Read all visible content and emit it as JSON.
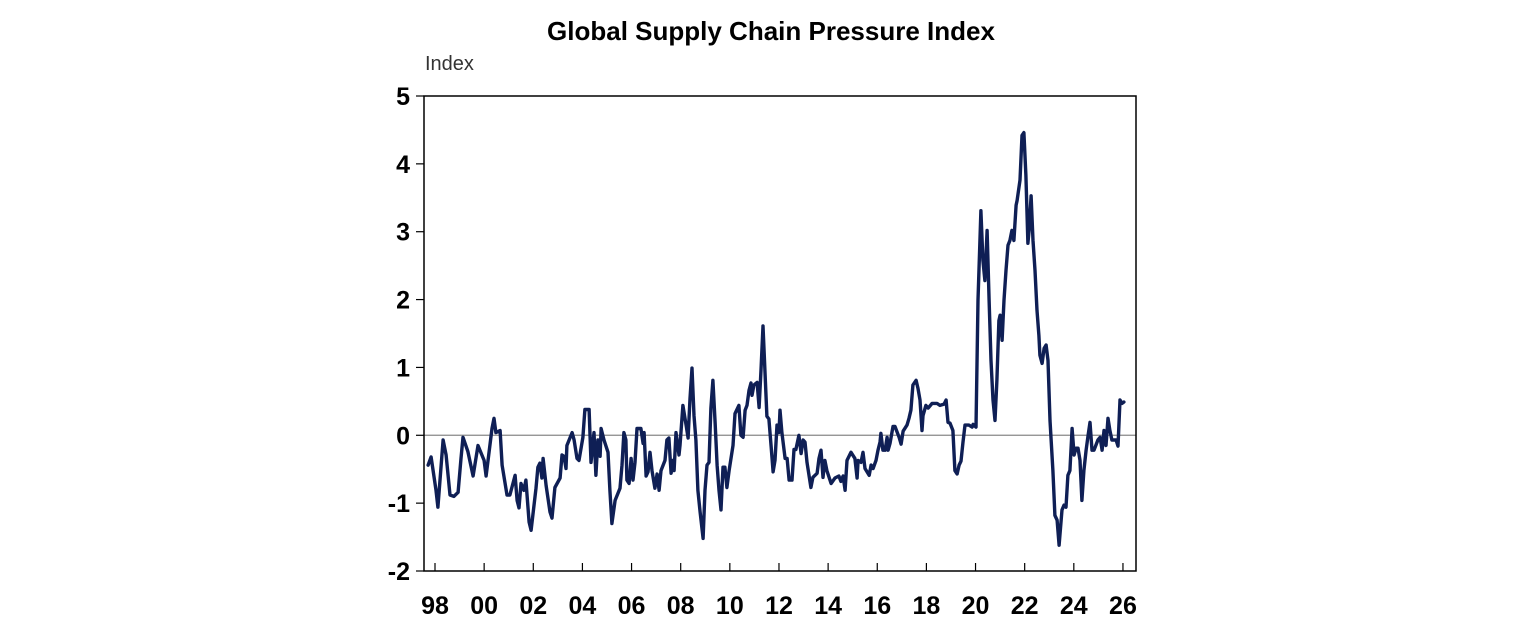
{
  "chart_data": {
    "type": "line",
    "title": "Global Supply Chain Pressure Index",
    "ylabel": "Index",
    "xlabel": "",
    "ylim": [
      -2,
      5
    ],
    "xlim": [
      1997.6,
      2026.5
    ],
    "yticks": [
      5,
      4,
      3,
      2,
      1,
      0,
      -1,
      -2
    ],
    "xticks": [
      {
        "year": 1998,
        "label": "98"
      },
      {
        "year": 2000,
        "label": "00"
      },
      {
        "year": 2002,
        "label": "02"
      },
      {
        "year": 2004,
        "label": "04"
      },
      {
        "year": 2006,
        "label": "06"
      },
      {
        "year": 2008,
        "label": "08"
      },
      {
        "year": 2010,
        "label": "10"
      },
      {
        "year": 2012,
        "label": "12"
      },
      {
        "year": 2014,
        "label": "14"
      },
      {
        "year": 2016,
        "label": "16"
      },
      {
        "year": 2018,
        "label": "18"
      },
      {
        "year": 2020,
        "label": "20"
      },
      {
        "year": 2022,
        "label": "22"
      },
      {
        "year": 2024,
        "label": "24"
      },
      {
        "year": 2026,
        "label": "26"
      }
    ],
    "zero_line": true,
    "grid": false,
    "line_color": "#0f1f55",
    "points": [
      [
        1997.72,
        -0.44
      ],
      [
        1997.84,
        -0.32
      ],
      [
        1998.04,
        -0.81
      ],
      [
        1998.12,
        -1.06
      ],
      [
        1998.24,
        -0.49
      ],
      [
        1998.33,
        -0.07
      ],
      [
        1998.45,
        -0.29
      ],
      [
        1998.61,
        -0.88
      ],
      [
        1998.77,
        -0.9
      ],
      [
        1998.94,
        -0.84
      ],
      [
        1999.06,
        -0.34
      ],
      [
        1999.14,
        -0.03
      ],
      [
        1999.34,
        -0.24
      ],
      [
        1999.55,
        -0.6
      ],
      [
        1999.75,
        -0.15
      ],
      [
        2000.0,
        -0.37
      ],
      [
        2000.08,
        -0.6
      ],
      [
        2000.32,
        0.1
      ],
      [
        2000.4,
        0.25
      ],
      [
        2000.48,
        0.04
      ],
      [
        2000.65,
        0.07
      ],
      [
        2000.73,
        -0.44
      ],
      [
        2000.93,
        -0.88
      ],
      [
        2001.05,
        -0.88
      ],
      [
        2001.26,
        -0.59
      ],
      [
        2001.34,
        -0.96
      ],
      [
        2001.42,
        -1.07
      ],
      [
        2001.5,
        -0.71
      ],
      [
        2001.62,
        -0.81
      ],
      [
        2001.7,
        -0.66
      ],
      [
        2001.83,
        -1.28
      ],
      [
        2001.91,
        -1.4
      ],
      [
        2002.11,
        -0.78
      ],
      [
        2002.19,
        -0.47
      ],
      [
        2002.27,
        -0.41
      ],
      [
        2002.35,
        -0.63
      ],
      [
        2002.4,
        -0.34
      ],
      [
        2002.52,
        -0.74
      ],
      [
        2002.68,
        -1.13
      ],
      [
        2002.76,
        -1.22
      ],
      [
        2002.88,
        -0.77
      ],
      [
        2003.09,
        -0.63
      ],
      [
        2003.17,
        -0.29
      ],
      [
        2003.25,
        -0.31
      ],
      [
        2003.33,
        -0.49
      ],
      [
        2003.37,
        -0.15
      ],
      [
        2003.58,
        0.04
      ],
      [
        2003.66,
        -0.07
      ],
      [
        2003.78,
        -0.34
      ],
      [
        2003.86,
        -0.37
      ],
      [
        2004.02,
        -0.03
      ],
      [
        2004.1,
        0.38
      ],
      [
        2004.27,
        0.38
      ],
      [
        2004.35,
        -0.4
      ],
      [
        2004.47,
        0.04
      ],
      [
        2004.55,
        -0.59
      ],
      [
        2004.63,
        -0.07
      ],
      [
        2004.72,
        -0.31
      ],
      [
        2004.76,
        0.1
      ],
      [
        2004.88,
        -0.07
      ],
      [
        2005.04,
        -0.25
      ],
      [
        2005.12,
        -0.81
      ],
      [
        2005.2,
        -1.3
      ],
      [
        2005.33,
        -0.96
      ],
      [
        2005.53,
        -0.78
      ],
      [
        2005.61,
        -0.44
      ],
      [
        2005.69,
        0.04
      ],
      [
        2005.77,
        -0.07
      ],
      [
        2005.81,
        -0.66
      ],
      [
        2005.9,
        -0.71
      ],
      [
        2005.98,
        -0.34
      ],
      [
        2006.06,
        -0.66
      ],
      [
        2006.14,
        -0.4
      ],
      [
        2006.22,
        0.1
      ],
      [
        2006.38,
        0.1
      ],
      [
        2006.47,
        -0.12
      ],
      [
        2006.51,
        0.04
      ],
      [
        2006.59,
        -0.6
      ],
      [
        2006.67,
        -0.54
      ],
      [
        2006.75,
        -0.25
      ],
      [
        2006.83,
        -0.52
      ],
      [
        2006.95,
        -0.78
      ],
      [
        2007.04,
        -0.57
      ],
      [
        2007.12,
        -0.81
      ],
      [
        2007.2,
        -0.52
      ],
      [
        2007.36,
        -0.37
      ],
      [
        2007.44,
        -0.07
      ],
      [
        2007.52,
        -0.04
      ],
      [
        2007.61,
        -0.56
      ],
      [
        2007.69,
        -0.37
      ],
      [
        2007.73,
        -0.52
      ],
      [
        2007.81,
        0.04
      ],
      [
        2007.93,
        -0.29
      ],
      [
        2007.97,
        -0.15
      ],
      [
        2008.09,
        0.44
      ],
      [
        2008.22,
        0.15
      ],
      [
        2008.3,
        -0.04
      ],
      [
        2008.38,
        0.54
      ],
      [
        2008.46,
        0.99
      ],
      [
        2008.54,
        0.29
      ],
      [
        2008.62,
        -0.07
      ],
      [
        2008.7,
        -0.81
      ],
      [
        2008.79,
        -1.13
      ],
      [
        2008.91,
        -1.52
      ],
      [
        2008.99,
        -0.81
      ],
      [
        2009.07,
        -0.44
      ],
      [
        2009.15,
        -0.4
      ],
      [
        2009.23,
        0.4
      ],
      [
        2009.31,
        0.81
      ],
      [
        2009.4,
        0.19
      ],
      [
        2009.48,
        -0.44
      ],
      [
        2009.56,
        -0.81
      ],
      [
        2009.64,
        -1.1
      ],
      [
        2009.72,
        -0.47
      ],
      [
        2009.8,
        -0.47
      ],
      [
        2009.88,
        -0.77
      ],
      [
        2009.97,
        -0.52
      ],
      [
        2010.13,
        -0.15
      ],
      [
        2010.21,
        0.32
      ],
      [
        2010.37,
        0.44
      ],
      [
        2010.45,
        0.0
      ],
      [
        2010.54,
        -0.03
      ],
      [
        2010.62,
        0.37
      ],
      [
        2010.7,
        0.44
      ],
      [
        2010.78,
        0.66
      ],
      [
        2010.86,
        0.77
      ],
      [
        2010.9,
        0.59
      ],
      [
        2010.98,
        0.74
      ],
      [
        2011.11,
        0.78
      ],
      [
        2011.19,
        0.41
      ],
      [
        2011.27,
        0.96
      ],
      [
        2011.35,
        1.61
      ],
      [
        2011.43,
        0.93
      ],
      [
        2011.51,
        0.28
      ],
      [
        2011.59,
        0.24
      ],
      [
        2011.68,
        -0.16
      ],
      [
        2011.76,
        -0.54
      ],
      [
        2011.84,
        -0.37
      ],
      [
        2011.92,
        0.15
      ],
      [
        2012.0,
        0.04
      ],
      [
        2012.04,
        0.37
      ],
      [
        2012.12,
        0.04
      ],
      [
        2012.25,
        -0.34
      ],
      [
        2012.33,
        -0.34
      ],
      [
        2012.41,
        -0.66
      ],
      [
        2012.53,
        -0.66
      ],
      [
        2012.61,
        -0.21
      ],
      [
        2012.69,
        -0.21
      ],
      [
        2012.81,
        0.0
      ],
      [
        2012.9,
        -0.27
      ],
      [
        2012.98,
        -0.07
      ],
      [
        2013.06,
        -0.1
      ],
      [
        2013.14,
        -0.4
      ],
      [
        2013.3,
        -0.77
      ],
      [
        2013.38,
        -0.62
      ],
      [
        2013.55,
        -0.56
      ],
      [
        2013.63,
        -0.34
      ],
      [
        2013.71,
        -0.22
      ],
      [
        2013.79,
        -0.62
      ],
      [
        2013.87,
        -0.37
      ],
      [
        2013.95,
        -0.52
      ],
      [
        2014.12,
        -0.71
      ],
      [
        2014.28,
        -0.63
      ],
      [
        2014.44,
        -0.6
      ],
      [
        2014.52,
        -0.68
      ],
      [
        2014.61,
        -0.6
      ],
      [
        2014.69,
        -0.81
      ],
      [
        2014.77,
        -0.37
      ],
      [
        2014.93,
        -0.25
      ],
      [
        2015.09,
        -0.34
      ],
      [
        2015.18,
        -0.63
      ],
      [
        2015.22,
        -0.37
      ],
      [
        2015.34,
        -0.4
      ],
      [
        2015.42,
        -0.25
      ],
      [
        2015.5,
        -0.49
      ],
      [
        2015.67,
        -0.59
      ],
      [
        2015.75,
        -0.44
      ],
      [
        2015.83,
        -0.49
      ],
      [
        2015.95,
        -0.37
      ],
      [
        2016.03,
        -0.22
      ],
      [
        2016.11,
        -0.1
      ],
      [
        2016.15,
        0.03
      ],
      [
        2016.23,
        -0.22
      ],
      [
        2016.32,
        -0.22
      ],
      [
        2016.4,
        -0.03
      ],
      [
        2016.44,
        -0.22
      ],
      [
        2016.52,
        -0.12
      ],
      [
        2016.64,
        0.13
      ],
      [
        2016.72,
        0.13
      ],
      [
        2016.89,
        -0.03
      ],
      [
        2016.97,
        -0.13
      ],
      [
        2017.05,
        0.06
      ],
      [
        2017.21,
        0.15
      ],
      [
        2017.29,
        0.25
      ],
      [
        2017.37,
        0.37
      ],
      [
        2017.45,
        0.74
      ],
      [
        2017.58,
        0.81
      ],
      [
        2017.66,
        0.69
      ],
      [
        2017.74,
        0.52
      ],
      [
        2017.82,
        0.07
      ],
      [
        2017.86,
        0.29
      ],
      [
        2017.98,
        0.44
      ],
      [
        2018.07,
        0.4
      ],
      [
        2018.23,
        0.47
      ],
      [
        2018.43,
        0.47
      ],
      [
        2018.55,
        0.44
      ],
      [
        2018.72,
        0.46
      ],
      [
        2018.8,
        0.52
      ],
      [
        2018.88,
        0.19
      ],
      [
        2018.96,
        0.18
      ],
      [
        2019.08,
        0.07
      ],
      [
        2019.16,
        -0.52
      ],
      [
        2019.25,
        -0.57
      ],
      [
        2019.33,
        -0.44
      ],
      [
        2019.41,
        -0.38
      ],
      [
        2019.49,
        -0.1
      ],
      [
        2019.57,
        0.15
      ],
      [
        2019.73,
        0.15
      ],
      [
        2019.86,
        0.12
      ],
      [
        2019.9,
        0.16
      ],
      [
        2020.02,
        0.12
      ],
      [
        2020.1,
        1.99
      ],
      [
        2020.22,
        3.31
      ],
      [
        2020.3,
        2.58
      ],
      [
        2020.38,
        2.28
      ],
      [
        2020.47,
        3.02
      ],
      [
        2020.55,
        1.99
      ],
      [
        2020.63,
        1.1
      ],
      [
        2020.71,
        0.52
      ],
      [
        2020.79,
        0.22
      ],
      [
        2020.87,
        0.81
      ],
      [
        2020.95,
        1.69
      ],
      [
        2021.0,
        1.77
      ],
      [
        2021.08,
        1.4
      ],
      [
        2021.16,
        1.99
      ],
      [
        2021.24,
        2.43
      ],
      [
        2021.32,
        2.8
      ],
      [
        2021.4,
        2.87
      ],
      [
        2021.48,
        3.02
      ],
      [
        2021.56,
        2.87
      ],
      [
        2021.65,
        3.39
      ],
      [
        2021.69,
        3.46
      ],
      [
        2021.81,
        3.76
      ],
      [
        2021.89,
        4.42
      ],
      [
        2021.97,
        4.46
      ],
      [
        2022.05,
        3.83
      ],
      [
        2022.13,
        2.83
      ],
      [
        2022.18,
        3.02
      ],
      [
        2022.26,
        3.53
      ],
      [
        2022.34,
        2.87
      ],
      [
        2022.42,
        2.43
      ],
      [
        2022.5,
        1.84
      ],
      [
        2022.58,
        1.47
      ],
      [
        2022.62,
        1.18
      ],
      [
        2022.71,
        1.06
      ],
      [
        2022.79,
        1.28
      ],
      [
        2022.87,
        1.33
      ],
      [
        2022.95,
        1.1
      ],
      [
        2023.03,
        0.22
      ],
      [
        2023.15,
        -0.52
      ],
      [
        2023.23,
        -1.18
      ],
      [
        2023.32,
        -1.25
      ],
      [
        2023.4,
        -1.62
      ],
      [
        2023.52,
        -1.1
      ],
      [
        2023.6,
        -1.03
      ],
      [
        2023.68,
        -1.06
      ],
      [
        2023.76,
        -0.59
      ],
      [
        2023.84,
        -0.52
      ],
      [
        2023.93,
        0.1
      ],
      [
        2024.01,
        -0.29
      ],
      [
        2024.09,
        -0.19
      ],
      [
        2024.17,
        -0.19
      ],
      [
        2024.25,
        -0.37
      ],
      [
        2024.33,
        -0.96
      ],
      [
        2024.41,
        -0.52
      ],
      [
        2024.5,
        -0.22
      ],
      [
        2024.58,
        0.0
      ],
      [
        2024.66,
        0.19
      ],
      [
        2024.74,
        -0.22
      ],
      [
        2024.82,
        -0.22
      ],
      [
        2024.98,
        -0.07
      ],
      [
        2025.07,
        -0.03
      ],
      [
        2025.15,
        -0.22
      ],
      [
        2025.23,
        0.07
      ],
      [
        2025.31,
        -0.15
      ],
      [
        2025.39,
        0.25
      ],
      [
        2025.47,
        0.07
      ],
      [
        2025.55,
        -0.07
      ],
      [
        2025.72,
        -0.07
      ],
      [
        2025.8,
        -0.16
      ],
      [
        2025.88,
        0.52
      ],
      [
        2025.96,
        0.47
      ],
      [
        2026.04,
        0.49
      ]
    ]
  }
}
